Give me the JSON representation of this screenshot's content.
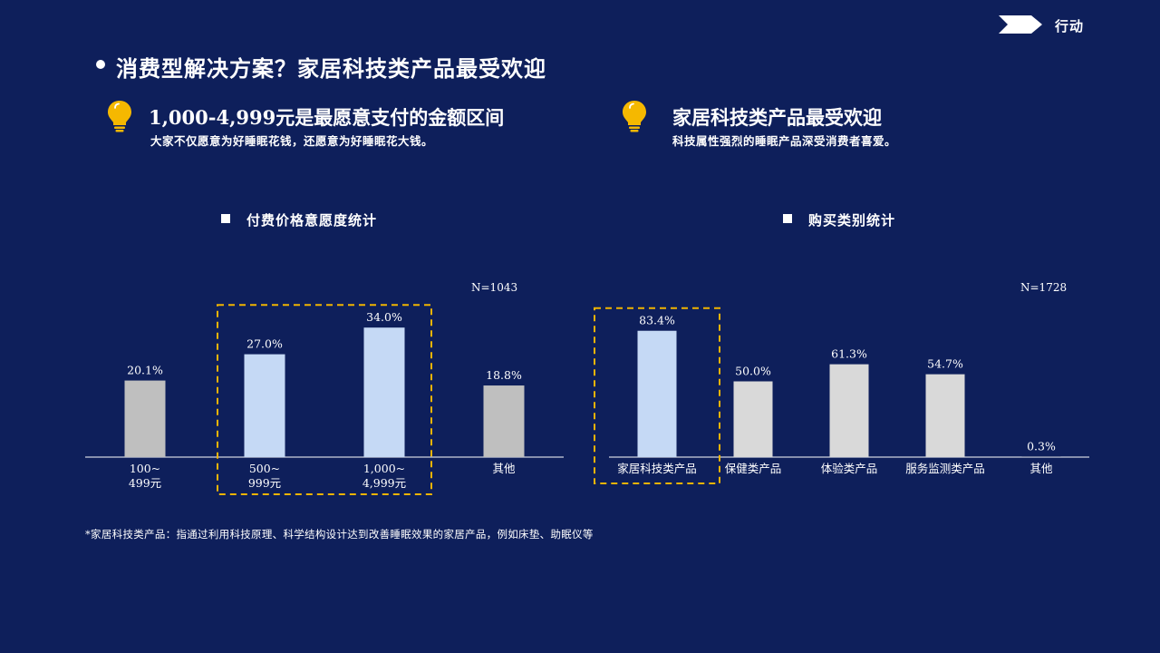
{
  "header": {
    "section_label": "行动"
  },
  "title": "消费型解决方案？家居科技类产品最受欢迎",
  "insights": [
    {
      "title": "1,000-4,999元是最愿意支付的金额区间",
      "subtitle": "大家不仅愿意为好睡眠花钱，还愿意为好睡眠花大钱。"
    },
    {
      "title": "家居科技类产品最受欢迎",
      "subtitle": "科技属性强烈的睡眠产品深受消费者喜爱。"
    }
  ],
  "colors": {
    "background": "#0e1f5b",
    "highlight_bar": "#c5d9f5",
    "gray_bar": "#bfbfbf",
    "light_gray_bar": "#d9d9d9",
    "highlight_box": "#f0b400",
    "bulb": "#f5b800"
  },
  "chart_data": [
    {
      "type": "bar",
      "title": "付费价格意愿度统计",
      "n_label": "N=1043",
      "categories": [
        "100~\n499元",
        "500~\n999元",
        "1,000~\n4,999元",
        "其他"
      ],
      "values": [
        20.1,
        27.0,
        34.0,
        18.8
      ],
      "value_labels": [
        "20.1%",
        "27.0%",
        "34.0%",
        "18.8%"
      ],
      "highlighted": [
        false,
        true,
        true,
        false
      ],
      "ylim": [
        0,
        45
      ]
    },
    {
      "type": "bar",
      "title": "购买类别统计",
      "n_label": "N=1728",
      "categories": [
        "家居科技类产品",
        "保健类产品",
        "体验类产品",
        "服务监测类产品",
        "其他"
      ],
      "values": [
        83.4,
        50.0,
        61.3,
        54.7,
        0.3
      ],
      "value_labels": [
        "83.4%",
        "50.0%",
        "61.3%",
        "54.7%",
        "0.3%"
      ],
      "highlighted": [
        true,
        false,
        false,
        false,
        false
      ],
      "ylim": [
        0,
        100
      ]
    }
  ],
  "footnote": "*家居科技类产品：指通过利用科技原理、科学结构设计达到改善睡眠效果的家居产品，例如床垫、助眠仪等"
}
